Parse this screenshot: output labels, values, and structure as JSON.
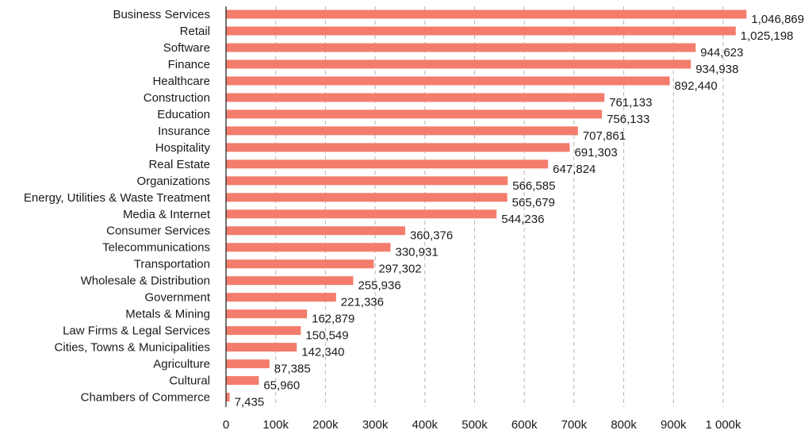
{
  "chart_data": {
    "type": "bar",
    "orientation": "horizontal",
    "title": "",
    "xlabel": "",
    "ylabel": "",
    "xlim": [
      0,
      1100000
    ],
    "grid": "vertical-dashed",
    "bar_color": "#f47c6c",
    "grid_color": "#b5b5b5",
    "categories": [
      "Business Services",
      "Retail",
      "Software",
      "Finance",
      "Healthcare",
      "Construction",
      "Education",
      "Insurance",
      "Hospitality",
      "Real Estate",
      "Organizations",
      "Energy, Utilities & Waste Treatment",
      "Media & Internet",
      "Consumer Services",
      "Telecommunications",
      "Transportation",
      "Wholesale & Distribution",
      "Government",
      "Metals & Mining",
      "Law Firms & Legal Services",
      "Cities, Towns & Municipalities",
      "Agriculture",
      "Cultural",
      "Chambers of Commerce"
    ],
    "values": [
      1046869,
      1025198,
      944623,
      934938,
      892440,
      761133,
      756133,
      707861,
      691303,
      647824,
      566585,
      565679,
      544236,
      360376,
      330931,
      297302,
      255936,
      221336,
      162879,
      150549,
      142340,
      87385,
      65960,
      7435
    ],
    "value_labels": [
      "1,046,869",
      "1,025,198",
      "944,623",
      "934,938",
      "892,440",
      "761,133",
      "756,133",
      "707,861",
      "691,303",
      "647,824",
      "566,585",
      "565,679",
      "544,236",
      "360,376",
      "330,931",
      "297,302",
      "255,936",
      "221,336",
      "162,879",
      "150,549",
      "142,340",
      "87,385",
      "65,960",
      "7,435"
    ],
    "ticks": [
      0,
      100000,
      200000,
      300000,
      400000,
      500000,
      600000,
      700000,
      800000,
      900000,
      1000000
    ],
    "tick_labels": [
      "0",
      "100k",
      "200k",
      "300k",
      "400k",
      "500k",
      "600k",
      "700k",
      "800k",
      "900k",
      "1 000k"
    ]
  }
}
